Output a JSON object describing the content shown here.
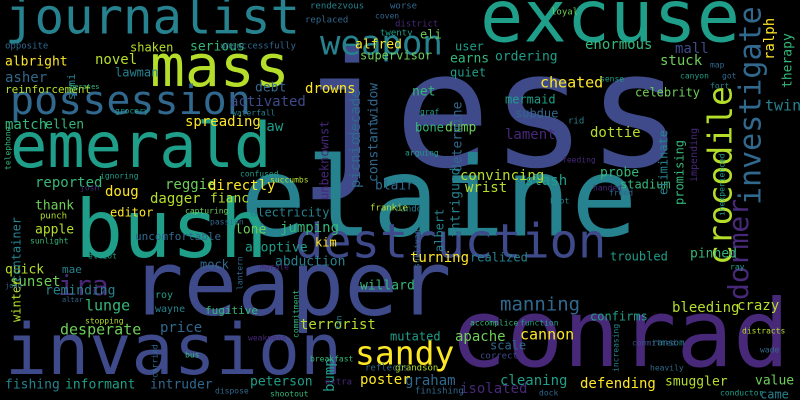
{
  "words": [
    "jess",
    "reaper",
    "conrad",
    "elaine",
    "excuse",
    "emerald",
    "bush",
    "invasion",
    "journalist",
    "mass",
    "possession",
    "weapon",
    "destruction",
    "crocodile",
    "investigate",
    "dormer",
    "ira",
    "sandy",
    "manning",
    "terrorist",
    "cannon",
    "apache",
    "desperate",
    "lunge",
    "reminding",
    "sunset",
    "quick",
    "mae",
    "container",
    "winter",
    "apple",
    "editor",
    "dagger",
    "doug",
    "reggie",
    "directly",
    "fianc",
    "electricity",
    "lone",
    "jumping",
    "adoptive",
    "abduction",
    "kim",
    "mock",
    "uncomfortable",
    "willard",
    "turning",
    "realized",
    "troubled",
    "pinned",
    "crazy",
    "bleeding",
    "confirms",
    "mutated",
    "price",
    "fugitive",
    "wayne",
    "roy",
    "fishing",
    "informant",
    "intruder",
    "peterson",
    "graham",
    "poster",
    "bump",
    "isolated",
    "cleaning",
    "defending",
    "smuggler",
    "value",
    "came",
    "scale",
    "picnic",
    "decade",
    "constant",
    "unbeknownst",
    "widow",
    "supervisor",
    "drowns",
    "alfred",
    "eli",
    "user",
    "earns",
    "ordering",
    "cheated",
    "enormous",
    "quiet",
    "mermaid",
    "subdue",
    "net",
    "bone",
    "dump",
    "lament",
    "dottie",
    "celebrity",
    "stuck",
    "mall",
    "ralph",
    "therapy",
    "twin",
    "convincing",
    "slash",
    "wrist",
    "determine",
    "intrigued",
    "blair",
    "probe",
    "stadium",
    "eliminate",
    "promising",
    "impending",
    "albert",
    "novel",
    "shaken",
    "lawman",
    "albright",
    "semi",
    "asher",
    "reinforcement",
    "match",
    "ellen",
    "spreading",
    "activated",
    "debt",
    "serious",
    "saw",
    "reported",
    "thank",
    "punch",
    "rendezvous",
    "telephone",
    "worse",
    "coven",
    "loyal",
    "opposite",
    "replaced",
    "district",
    "twenty",
    "unsuccessfully",
    "sense",
    "graf",
    "rid",
    "feeding",
    "arguing",
    "boot",
    "random",
    "frankie",
    "ignoring",
    "confused",
    "capturing",
    "passion",
    "succumbs",
    "josh",
    "sunlight",
    "elliot",
    "joan",
    "altar",
    "stopping",
    "carried",
    "bus",
    "weakness",
    "commitment",
    "morale",
    "sullivan",
    "breakfast",
    "extra",
    "reflects",
    "grandson",
    "finishing",
    "shootout",
    "dispose",
    "correct",
    "accomplice",
    "function",
    "committed",
    "ransom",
    "heavily",
    "wade",
    "distracts",
    "inexperienced",
    "handed",
    "freed",
    "ray",
    "conductor",
    "dock",
    "increasing",
    "fan",
    "lantern",
    "canyon",
    "fort",
    "map",
    "got",
    "grocery",
    "waterfall",
    "berates"
  ]
}
